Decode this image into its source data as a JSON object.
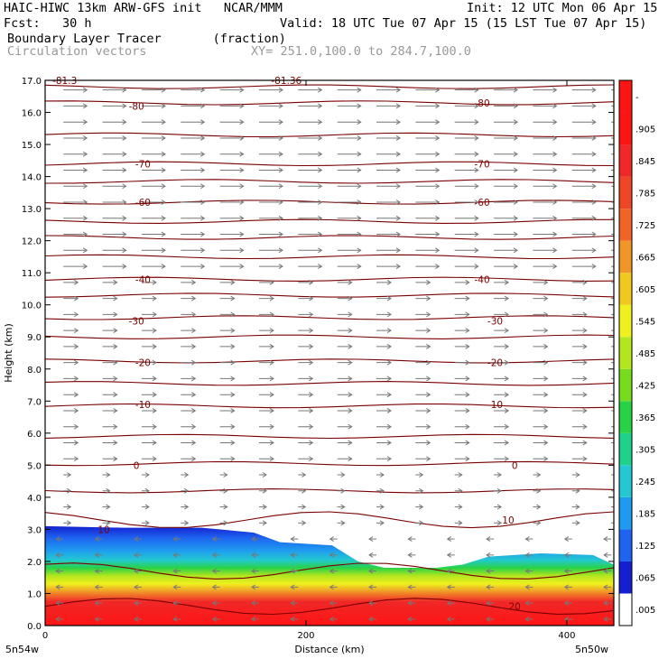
{
  "header": {
    "model_line": "HAIC-HIWC 13km ARW-GFS init   NCAR/MMM",
    "init_line": "Init: 12 UTC Mon 06 Apr 15",
    "fcst_line": "Fcst:   30 h",
    "valid_line": "Valid: 18 UTC Tue 07 Apr 15 (15 LST Tue 07 Apr 15)",
    "field_line": "Boundary Layer Tracer       (fraction)",
    "vector_line": "Circulation vectors",
    "xy_line": "XY= 251.0,100.0 to 284.7,100.0"
  },
  "colorbar": {
    "labels": [
      ".005",
      ".065",
      ".125",
      ".185",
      ".245",
      ".305",
      ".365",
      ".425",
      ".485",
      ".545",
      ".605",
      ".665",
      ".725",
      ".785",
      ".845",
      ".905",
      "-"
    ],
    "colors": [
      "#ffffff",
      "#1420d0",
      "#1e64f0",
      "#1e9af0",
      "#23c8d2",
      "#1ed28c",
      "#28d246",
      "#78dc1e",
      "#b4e61e",
      "#f0f01e",
      "#f0c81e",
      "#f09628",
      "#f06428",
      "#f04628",
      "#f02828",
      "#ff1414",
      "#ff1414"
    ]
  },
  "chart_data": {
    "type": "cross-section",
    "xlabel": "Distance (km)",
    "ylabel": "Height (km)",
    "xlim": [
      0,
      436
    ],
    "ylim": [
      0,
      17
    ],
    "x_ticks": [
      "0",
      "200",
      "400"
    ],
    "y_ticks": [
      "0.0",
      "1.0",
      "2.0",
      "3.0",
      "4.0",
      "5.0",
      "6.0",
      "7.0",
      "8.0",
      "9.0",
      "10.0",
      "11.0",
      "12.0",
      "13.0",
      "14.0",
      "15.0",
      "16.0",
      "17.0"
    ],
    "x_end_labels": [
      "5n54w",
      "5n50w"
    ],
    "tracer_top_km": {
      "x": [
        0,
        60,
        120,
        160,
        180,
        220,
        240,
        260,
        300,
        320,
        340,
        380,
        420,
        436
      ],
      "y": [
        3.1,
        3.05,
        3.05,
        2.9,
        2.6,
        2.5,
        2.0,
        1.8,
        1.8,
        1.9,
        2.15,
        2.25,
        2.2,
        1.9
      ]
    },
    "contour_labels": [
      {
        "text": "-81.3",
        "x": 15,
        "y": 17.0
      },
      {
        "text": "-81.36",
        "x": 185,
        "y": 17.0
      },
      {
        "text": "-80",
        "x": 70,
        "y": 16.2
      },
      {
        "text": "-80",
        "x": 335,
        "y": 16.3
      },
      {
        "text": "-70",
        "x": 75,
        "y": 14.4
      },
      {
        "text": "-70",
        "x": 335,
        "y": 14.4
      },
      {
        "text": "-60",
        "x": 75,
        "y": 13.2
      },
      {
        "text": "-60",
        "x": 335,
        "y": 13.2
      },
      {
        "text": "-40",
        "x": 75,
        "y": 10.8
      },
      {
        "text": "-40",
        "x": 335,
        "y": 10.8
      },
      {
        "text": "-30",
        "x": 70,
        "y": 9.5
      },
      {
        "text": "-30",
        "x": 345,
        "y": 9.5
      },
      {
        "text": "-20",
        "x": 75,
        "y": 8.2
      },
      {
        "text": "-20",
        "x": 345,
        "y": 8.2
      },
      {
        "text": "-10",
        "x": 75,
        "y": 6.9
      },
      {
        "text": "-10",
        "x": 345,
        "y": 6.9
      },
      {
        "text": "0",
        "x": 70,
        "y": 5.0
      },
      {
        "text": "0",
        "x": 360,
        "y": 5.0
      },
      {
        "text": "10",
        "x": 45,
        "y": 3.0
      },
      {
        "text": "10",
        "x": 355,
        "y": 3.3
      },
      {
        "text": "20",
        "x": 360,
        "y": 0.6
      }
    ]
  }
}
